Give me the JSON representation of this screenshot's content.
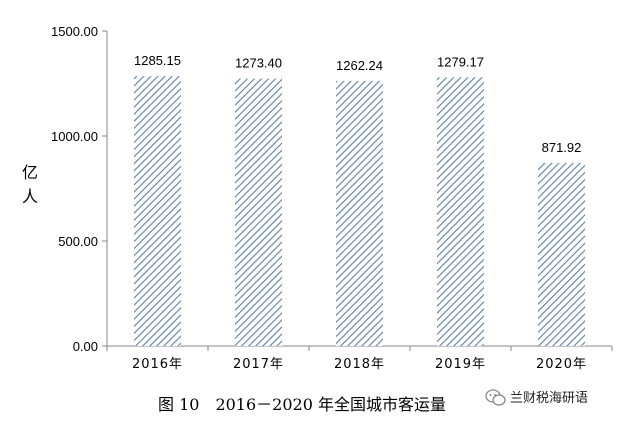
{
  "chart_data": {
    "type": "bar",
    "categories": [
      "2016年",
      "2017年",
      "2018年",
      "2019年",
      "2020年"
    ],
    "values": [
      1285.15,
      1273.4,
      1262.24,
      1279.17,
      871.92
    ],
    "data_labels": [
      "1285.15",
      "1273.40",
      "1262.24",
      "1279.17",
      "871.92"
    ],
    "ylabel": "亿人",
    "ylim": [
      0,
      1500
    ],
    "yticks": [
      0,
      500,
      1000,
      1500
    ],
    "ytick_labels": [
      "0.00",
      "500.00",
      "1000.00",
      "1500.00"
    ],
    "bar_pattern": "diagonal-hatch",
    "bar_color": "#5b7fa6",
    "grid": false
  },
  "caption": "图 10　2016－2020 年全国城市客运量",
  "watermark": {
    "icon": "wechat-icon",
    "text": "兰财税海研语"
  }
}
